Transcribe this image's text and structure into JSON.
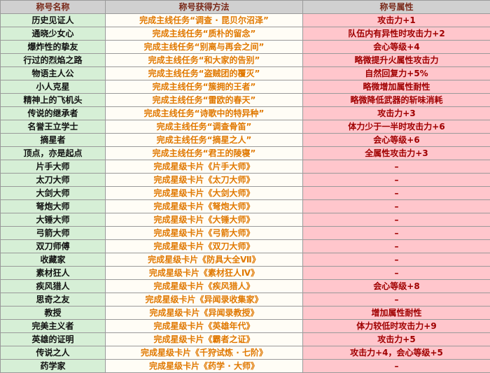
{
  "table": {
    "header": [
      "称号名称",
      "称号获得方法",
      "称号属性"
    ],
    "rows": [
      [
        "历史见证人",
        "完成主线任务“调查 · 昆贝尔沼泽”",
        "攻击力+1"
      ],
      [
        "通晓少女心",
        "完成主线任务“质朴的留念”",
        "队伍内有异性时攻击力+2"
      ],
      [
        "爆炸性的挚友",
        "完成主线任务“别离与再会之间”",
        "会心等级+4"
      ],
      [
        "行过的烈焰之路",
        "完成主线任务“和大家的告别”",
        "略微提升火属性攻击力"
      ],
      [
        "物语主人公",
        "完成主线任务“盗贼团的覆灭”",
        "自然回复力+5%"
      ],
      [
        "小人克星",
        "完成主线任务“簇拥的王者”",
        "略微增加属性耐性"
      ],
      [
        "精神上的飞机头",
        "完成主线任务“雷欧的春天”",
        "略微降低武器的斩味消耗"
      ],
      [
        "传说的继承者",
        "完成主线任务“诗歌中的特异种”",
        "攻击力+3"
      ],
      [
        "名誉王立学士",
        "完成主线任务“调查骨笛”",
        "体力少于一半时攻击力+6"
      ],
      [
        "摘星者",
        "完成主线任务“摘星之人”",
        "会心等级+6"
      ],
      [
        "顶点，亦是起点",
        "完成主线任务“君王的陵寝”",
        "全属性攻击力+3"
      ],
      [
        "片手大师",
        "完成星级卡片《片手大师》",
        "–"
      ],
      [
        "太刀大师",
        "完成星级卡片《太刀大师》",
        "–"
      ],
      [
        "大剑大师",
        "完成星级卡片《大剑大师》",
        "–"
      ],
      [
        "弩炮大师",
        "完成星级卡片《弩炮大师》",
        "–"
      ],
      [
        "大锤大师",
        "完成星级卡片《大锤大师》",
        "–"
      ],
      [
        "弓箭大师",
        "完成星级卡片《弓箭大师》",
        "–"
      ],
      [
        "双刀师傅",
        "完成星级卡片《双刀大师》",
        "–"
      ],
      [
        "收藏家",
        "完成星级卡片《防具大全Ⅶ》",
        "–"
      ],
      [
        "素材狂人",
        "完成星级卡片《素材狂人Ⅳ》",
        "–"
      ],
      [
        "疾风猎人",
        "完成星级卡片《疾风猎人》",
        "会心等级+8"
      ],
      [
        "思奇之友",
        "完成星级卡片《异闻录收集家》",
        "–"
      ],
      [
        "教授",
        "完成星级卡片《异闻录教授》",
        "增加属性耐性"
      ],
      [
        "完美主义者",
        "完成星级卡片《英雄年代》",
        "体力较低时攻击力+9"
      ],
      [
        "英雄的证明",
        "完成星级卡片《霸者之证》",
        "攻击力+5"
      ],
      [
        "传说之人",
        "完成星级卡片《千狩试炼 · 七阶》",
        "攻击力+4，会心等级+5"
      ],
      [
        "药学家",
        "完成星级卡片《药学 · 大师》",
        "–"
      ]
    ]
  }
}
